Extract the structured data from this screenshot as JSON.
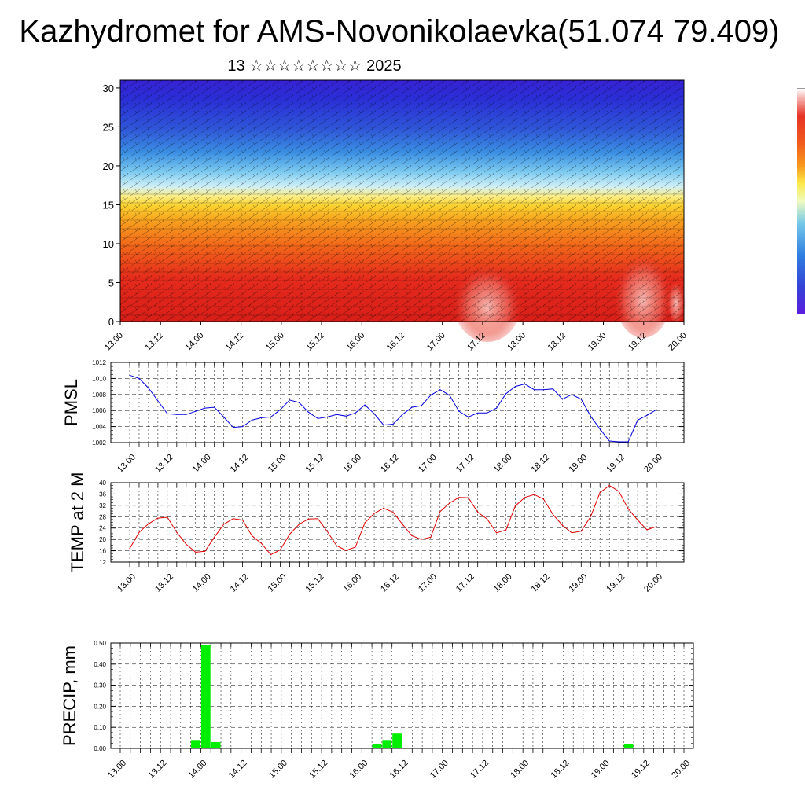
{
  "header": {
    "title": "Kazhydromet for AMS-Novonikolaevka(51.074 79.409)",
    "date": "13 ☆☆☆☆☆☆☆☆ 2025"
  },
  "colors": {
    "pmsl_line": "#0000dd",
    "temp_line": "#dd0000",
    "precip_bar": "#00ee00",
    "colorbar_top": "#ffffff",
    "colorbar_mid": "#fde84a",
    "colorbar_bottom": "#5a1ee0"
  },
  "chart_data": [
    {
      "id": "cross-section",
      "type": "heatmap",
      "title": "",
      "xlabel": "",
      "ylabel": "",
      "x_tick_labels": [
        "13.00",
        "13.12",
        "14.00",
        "14.12",
        "15.00",
        "15.12",
        "16.00",
        "16.12",
        "17.00",
        "17.12",
        "18.00",
        "18.12",
        "19.00",
        "19.12",
        "20.00"
      ],
      "y_ticks": [
        0,
        5,
        10,
        15,
        20,
        25,
        30
      ],
      "ylim": [
        0,
        31
      ],
      "color_scale": "warm (red, orange, yellow) near the surface to cold (blue, violet) aloft, with wind barbs overlaid",
      "colorbar_labels": []
    },
    {
      "id": "pmsl",
      "type": "line",
      "ylabel": "PMSL",
      "x_tick_labels": [
        "13.00",
        "13.12",
        "14.00",
        "14.12",
        "15.00",
        "15.12",
        "16.00",
        "16.12",
        "17.00",
        "17.12",
        "18.00",
        "18.12",
        "19.00",
        "19.12",
        "20.00"
      ],
      "y_ticks": [
        1002,
        1004,
        1006,
        1008,
        1010,
        1012
      ],
      "ylim": [
        1002,
        1012
      ],
      "grid": true,
      "step_hours": 3,
      "values": [
        1010.4,
        1010.0,
        1008.8,
        1007.2,
        1005.6,
        1005.5,
        1005.5,
        1005.9,
        1006.3,
        1006.4,
        1005.2,
        1003.9,
        1004.0,
        1004.8,
        1005.1,
        1005.2,
        1006.1,
        1007.3,
        1007.0,
        1005.8,
        1005.0,
        1005.2,
        1005.5,
        1005.3,
        1005.7,
        1006.7,
        1005.6,
        1004.2,
        1004.3,
        1005.5,
        1006.4,
        1006.6,
        1007.9,
        1008.6,
        1007.9,
        1005.9,
        1005.2,
        1005.7,
        1005.7,
        1006.3,
        1008.1,
        1009.0,
        1009.3,
        1008.6,
        1008.6,
        1008.7,
        1007.4,
        1008.0,
        1007.4,
        1005.3,
        1003.7,
        1002.2,
        1002.1,
        1002.1,
        1004.8,
        1005.4,
        1006.1
      ]
    },
    {
      "id": "temp",
      "type": "line",
      "ylabel": "TEMP at 2 M",
      "x_tick_labels": [
        "13.00",
        "13.12",
        "14.00",
        "14.12",
        "15.00",
        "15.12",
        "16.00",
        "16.12",
        "17.00",
        "17.12",
        "18.00",
        "18.12",
        "19.00",
        "19.12",
        "20.00"
      ],
      "y_ticks": [
        12,
        16,
        20,
        24,
        28,
        32,
        36,
        40
      ],
      "ylim": [
        12,
        40
      ],
      "grid": true,
      "step_hours": 3,
      "values": [
        16.8,
        22.5,
        25.5,
        27.5,
        27.8,
        22.5,
        18.3,
        15.5,
        15.8,
        20.8,
        25.3,
        27.3,
        26.8,
        21.3,
        18.6,
        14.6,
        16.3,
        21.8,
        25.3,
        27.2,
        27.3,
        22.8,
        17.8,
        16.1,
        17.3,
        25.8,
        29.2,
        31.0,
        29.6,
        25.3,
        21.3,
        20.0,
        20.8,
        29.8,
        32.8,
        34.8,
        34.7,
        29.6,
        27.2,
        22.3,
        23.3,
        31.8,
        34.8,
        35.8,
        34.2,
        28.8,
        25.0,
        22.3,
        22.9,
        28.0,
        36.5,
        39.0,
        37.0,
        30.8,
        26.8,
        23.4,
        24.5
      ]
    },
    {
      "id": "precip",
      "type": "bar",
      "ylabel": "PRECIP, mm",
      "x_tick_labels": [
        "13.00",
        "13.12",
        "14.00",
        "14.12",
        "15.00",
        "15.12",
        "16.00",
        "16.12",
        "17.00",
        "17.12",
        "18.00",
        "18.12",
        "19.00",
        "19.12",
        "20.00"
      ],
      "y_tick_labels": [
        "0.00",
        "0.10",
        "0.20",
        "0.30",
        "0.40",
        "0.50"
      ],
      "ylim": [
        0,
        0.5
      ],
      "grid": true,
      "step_hours": 3,
      "values": [
        0,
        0,
        0,
        0,
        0,
        0,
        0,
        0.04,
        0.49,
        0.03,
        0,
        0,
        0,
        0,
        0,
        0,
        0,
        0,
        0,
        0,
        0,
        0,
        0,
        0,
        0,
        0.02,
        0.04,
        0.07,
        0,
        0,
        0,
        0,
        0,
        0,
        0,
        0,
        0,
        0,
        0,
        0,
        0,
        0,
        0,
        0,
        0,
        0,
        0,
        0,
        0,
        0,
        0.02,
        0,
        0,
        0,
        0,
        0,
        0
      ]
    }
  ]
}
